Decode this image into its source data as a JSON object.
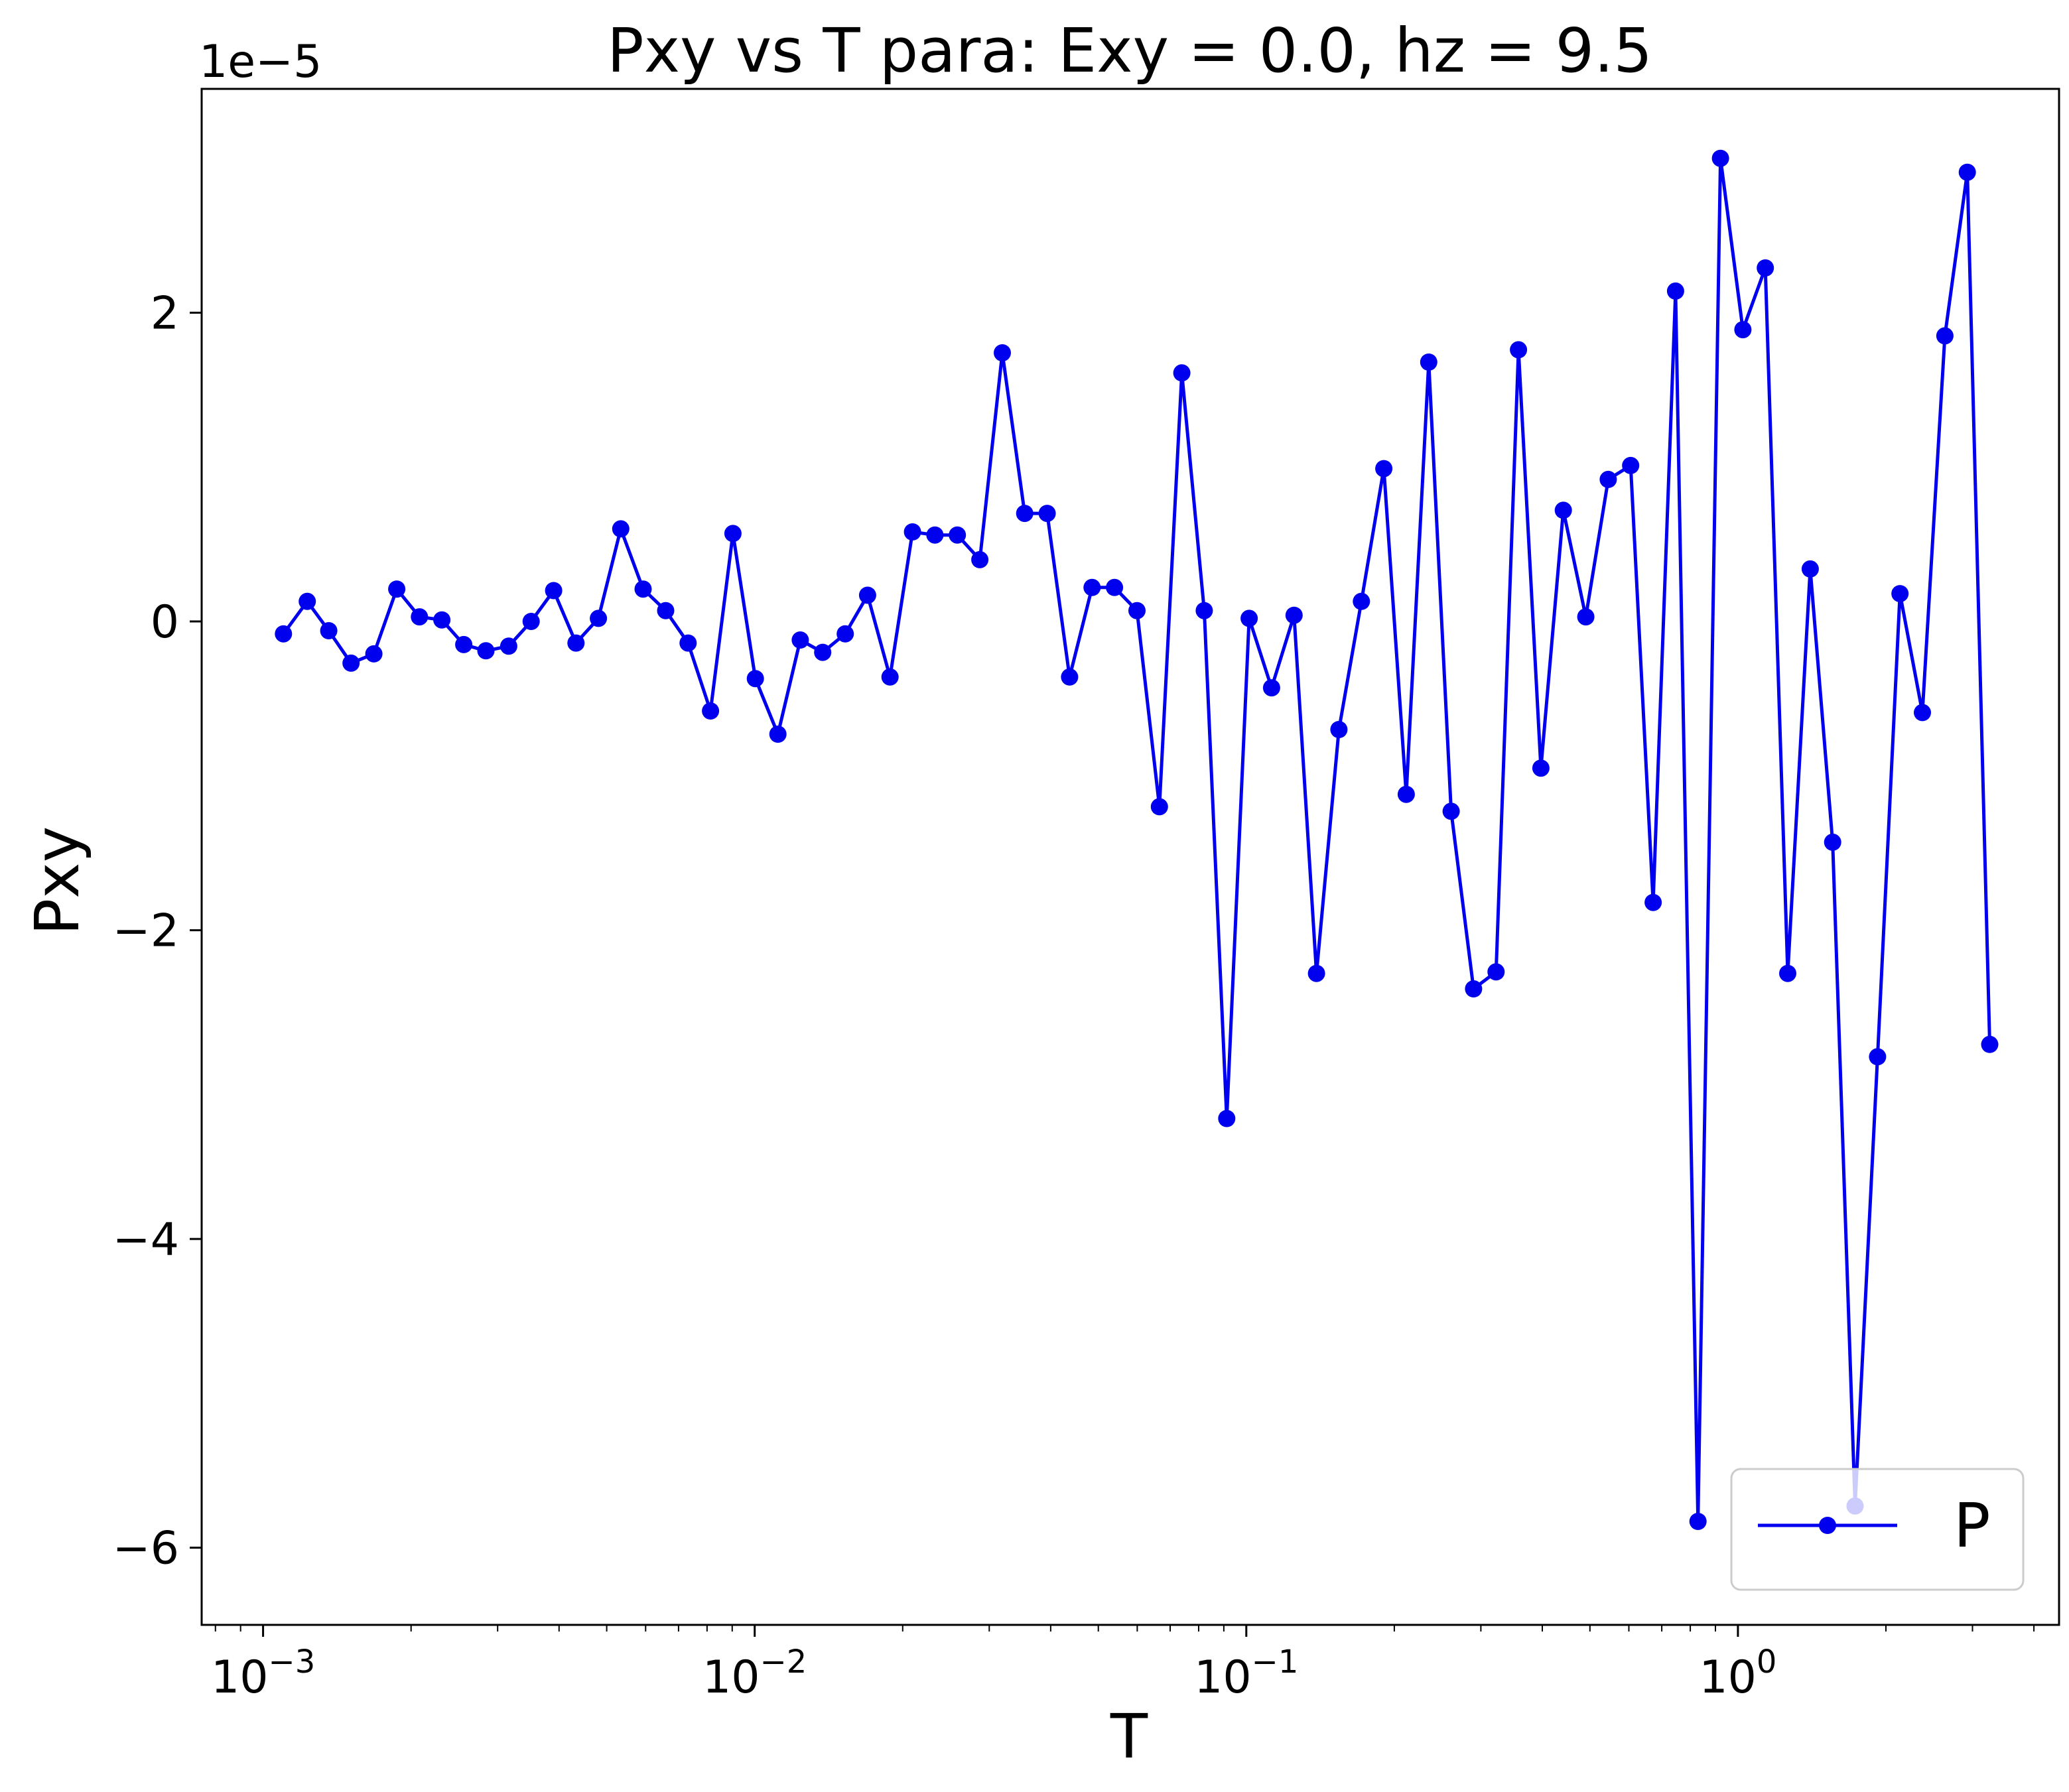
{
  "chart_data": {
    "type": "line",
    "title": "Pxy vs T para: Exy = 0.0, hz = 9.5",
    "xlabel": "T",
    "ylabel": "Pxy",
    "y_offset_label": "1e−5",
    "x_scale": "log",
    "xlim": [
      0.00075,
      4.5
    ],
    "ylim": [
      -6.5e-05,
      3.45e-05
    ],
    "x_tick_labels": [
      {
        "base": "10",
        "exp": "−3",
        "value": 0.001
      },
      {
        "base": "10",
        "exp": "−2",
        "value": 0.01
      },
      {
        "base": "10",
        "exp": "−1",
        "value": 0.1
      },
      {
        "base": "10",
        "exp": "0",
        "value": 1
      }
    ],
    "y_ticks": [
      {
        "label": "−6",
        "value": -6e-05
      },
      {
        "label": "−4",
        "value": -4e-05
      },
      {
        "label": "−2",
        "value": -2e-05
      },
      {
        "label": "0",
        "value": 0
      },
      {
        "label": "2",
        "value": 2e-05
      }
    ],
    "grid": false,
    "legend_position": "lower-right",
    "series": [
      {
        "name": "P",
        "color": "#0000ee",
        "marker": "circle",
        "x": [
          0.0011,
          0.00123,
          0.00136,
          0.00151,
          0.00168,
          0.00187,
          0.00208,
          0.00231,
          0.00256,
          0.00284,
          0.00316,
          0.00351,
          0.0039,
          0.00433,
          0.00481,
          0.00534,
          0.00593,
          0.00659,
          0.00732,
          0.00813,
          0.00903,
          0.01003,
          0.01115,
          0.01238,
          0.01375,
          0.01528,
          0.01697,
          0.01885,
          0.02094,
          0.02326,
          0.02584,
          0.02871,
          0.03189,
          0.03542,
          0.03935,
          0.04371,
          0.04856,
          0.05394,
          0.05992,
          0.06656,
          0.07394,
          0.08213,
          0.09124,
          0.10135,
          0.11258,
          0.12506,
          0.13892,
          0.15432,
          0.17142,
          0.19042,
          0.21153,
          0.23497,
          0.26101,
          0.28994,
          0.32208,
          0.35777,
          0.39743,
          0.44148,
          0.49041,
          0.54476,
          0.60514,
          0.67221,
          0.74671,
          0.82947,
          0.9214,
          1.02353,
          1.13697,
          1.26299,
          1.40297,
          1.55847,
          1.7312,
          1.92308,
          2.13622,
          2.37299,
          2.636,
          2.92816,
          3.25271
        ],
        "y": [
          -8e-07,
          1.3e-06,
          -6e-07,
          -2.7e-06,
          -2.1e-06,
          2.1e-06,
          3e-07,
          1e-07,
          -1.5e-06,
          -1.9e-06,
          -1.6e-06,
          0.0,
          2e-06,
          -1.4e-06,
          2e-07,
          6e-06,
          2.1e-06,
          7e-07,
          -1.4e-06,
          -5.8e-06,
          5.7e-06,
          -3.7e-06,
          -7.3e-06,
          -1.2e-06,
          -2e-06,
          -8e-07,
          1.7e-06,
          -3.6e-06,
          5.8e-06,
          5.6e-06,
          5.6e-06,
          4e-06,
          1.74e-05,
          7e-06,
          7e-06,
          -3.6e-06,
          2.2e-06,
          2.2e-06,
          7e-07,
          -1.2e-05,
          1.61e-05,
          7e-07,
          -3.22e-05,
          2e-07,
          -4.3e-06,
          4e-07,
          -2.28e-05,
          -7e-06,
          1.3e-06,
          9.9e-06,
          -1.12e-05,
          1.68e-05,
          -1.23e-05,
          -2.38e-05,
          -2.27e-05,
          1.76e-05,
          -9.5e-06,
          7.2e-06,
          3e-07,
          9.2e-06,
          1.01e-05,
          -1.82e-05,
          2.14e-05,
          -5.83e-05,
          3e-05,
          1.89e-05,
          2.29e-05,
          -2.28e-05,
          3.4e-06,
          -1.43e-05,
          -5.73e-05,
          -2.82e-05,
          1.8e-06,
          -5.9e-06,
          1.85e-05,
          2.91e-05,
          -2.74e-05
        ]
      }
    ]
  }
}
